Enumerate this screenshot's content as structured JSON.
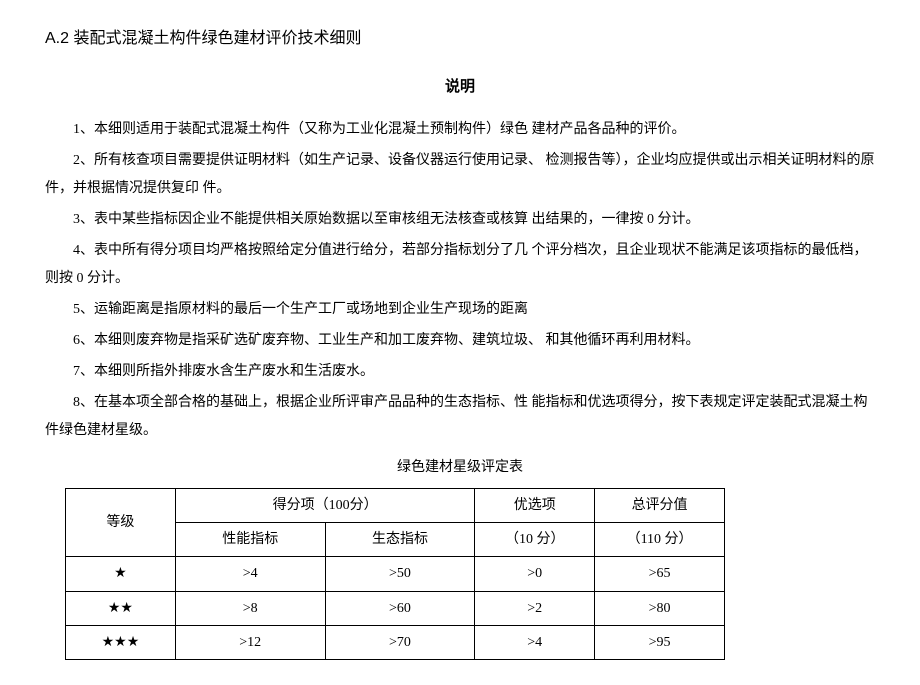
{
  "section_title": "A.2 装配式混凝土构件绿色建材评价技术细则",
  "subtitle": "说明",
  "paragraphs": {
    "p1": "1、本细则适用于装配式混凝土构件（又称为工业化混凝土预制构件）绿色 建材产品各品种的评价。",
    "p2": "2、所有核查项目需要提供证明材料（如生产记录、设备仪器运行使用记录、 检测报告等），企业均应提供或出示相关证明材料的原件，并根据情况提供复印 件。",
    "p3": "3、表中某些指标因企业不能提供相关原始数据以至审核组无法核查或核算 出结果的，一律按 0 分计。",
    "p4": "4、表中所有得分项目均严格按照给定分值进行给分，若部分指标划分了几 个评分档次，且企业现状不能满足该项指标的最低档，则按 0 分计。",
    "p5": "5、运输距离是指原材料的最后一个生产工厂或场地到企业生产现场的距离",
    "p6": "6、本细则废弃物是指采矿选矿废弃物、工业生产和加工废弃物、建筑垃圾、 和其他循环再利用材料。",
    "p7": "7、本细则所指外排废水含生产废水和生活废水。",
    "p8": "8、在基本项全部合格的基础上，根据企业所评审产品品种的生态指标、性 能指标和优选项得分，按下表规定评定装配式混凝土构件绿色建材星级。"
  },
  "table": {
    "title": "绿色建材星级评定表",
    "headers": {
      "level": "等级",
      "score_group": "得分项（100分）",
      "perf": "性能指标",
      "eco": "生态指标",
      "pref": "优选项",
      "pref_sub": "（10 分）",
      "total": "总评分值",
      "total_sub": "（110 分）"
    },
    "rows": [
      {
        "level": "★",
        "perf": ">4",
        "eco": ">50",
        "pref": ">0",
        "total": ">65"
      },
      {
        "level": "★★",
        "perf": ">8",
        "eco": ">60",
        "pref": ">2",
        "total": ">80"
      },
      {
        "level": "★★★",
        "perf": ">12",
        "eco": ">70",
        "pref": ">4",
        "total": ">95"
      }
    ]
  }
}
